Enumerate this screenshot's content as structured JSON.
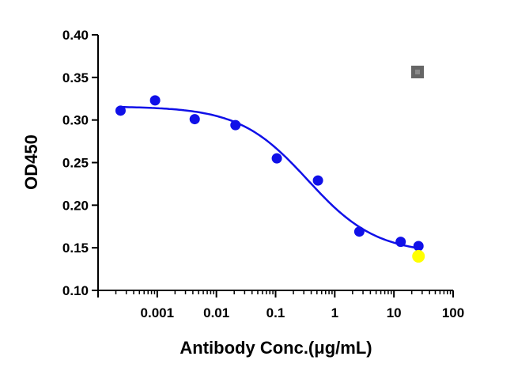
{
  "chart_data": {
    "type": "scatter",
    "xlabel": "Antibody Conc.(μg/mL)",
    "ylabel": "OD450",
    "x_scale": "log",
    "xlim": [
      0.0001,
      100
    ],
    "ylim": [
      0.1,
      0.4
    ],
    "x_tick_labels": [
      "0.001",
      "0.01",
      "0.1",
      "1",
      "10",
      "100"
    ],
    "x_tick_values": [
      0.001,
      0.01,
      0.1,
      1,
      10,
      100
    ],
    "y_tick_labels": [
      "0.10",
      "0.15",
      "0.20",
      "0.25",
      "0.30",
      "0.35",
      "0.40"
    ],
    "y_tick_values": [
      0.1,
      0.15,
      0.2,
      0.25,
      0.3,
      0.35,
      0.4
    ],
    "grid": false,
    "series": [
      {
        "color": "#1010e8",
        "marker": "circle",
        "points": [
          {
            "x": 0.00024,
            "y": 0.311
          },
          {
            "x": 0.00092,
            "y": 0.323
          },
          {
            "x": 0.0043,
            "y": 0.301
          },
          {
            "x": 0.021,
            "y": 0.294
          },
          {
            "x": 0.105,
            "y": 0.255
          },
          {
            "x": 0.52,
            "y": 0.229
          },
          {
            "x": 2.6,
            "y": 0.169
          },
          {
            "x": 13,
            "y": 0.157
          },
          {
            "x": 26,
            "y": 0.152
          }
        ],
        "fit": {
          "model": "4PL",
          "top": 0.316,
          "bottom": 0.143,
          "ec50": 0.35,
          "hill": 0.75
        }
      }
    ],
    "extra_markers": [
      {
        "x": 26,
        "y": 0.14,
        "color": "#ffff00",
        "marker": "circle"
      }
    ],
    "legend_icon": {
      "color": "#666666",
      "marker": "square",
      "position": "top-right"
    }
  }
}
